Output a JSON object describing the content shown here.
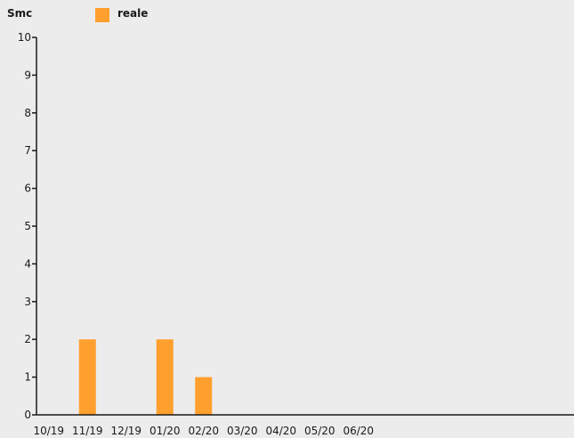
{
  "chart_data": {
    "type": "bar",
    "ylabel": "Smc",
    "categories": [
      "10/19",
      "11/19",
      "12/19",
      "01/20",
      "02/20",
      "03/20",
      "04/20",
      "05/20",
      "06/20"
    ],
    "series": [
      {
        "name": "reale",
        "color": "#ff9f2e",
        "values": [
          0,
          2,
          0,
          2,
          1,
          0,
          0,
          0,
          0
        ]
      }
    ],
    "ylim": [
      0,
      10
    ],
    "yticks": [
      0,
      1,
      2,
      3,
      4,
      5,
      6,
      7,
      8,
      9,
      10
    ],
    "legend_position": "top",
    "grid": false
  }
}
